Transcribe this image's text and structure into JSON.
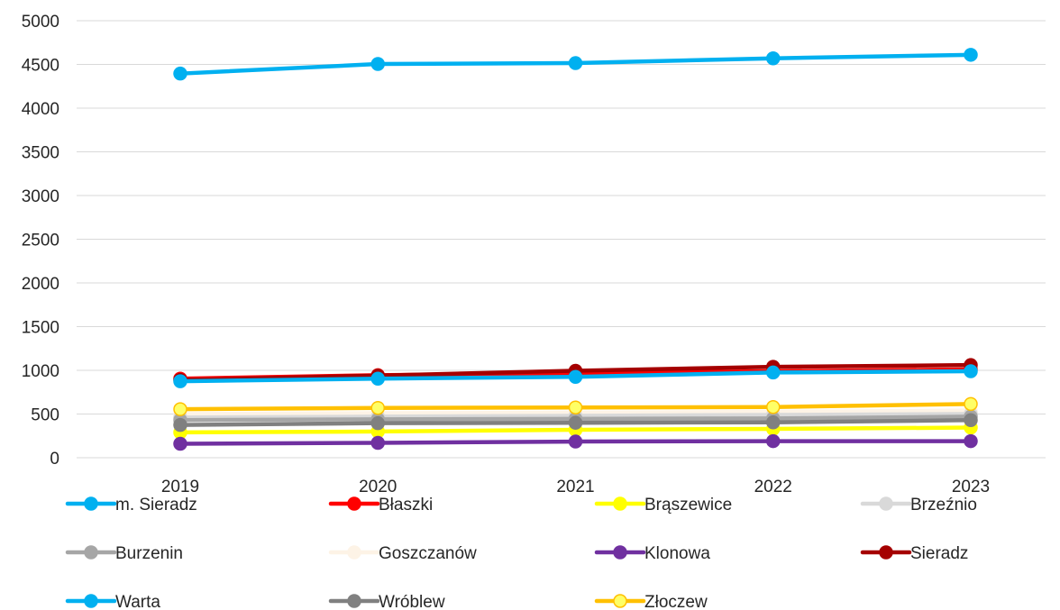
{
  "chart_data": {
    "type": "line",
    "title": "",
    "xlabel": "",
    "ylabel": "",
    "x": [
      "2019",
      "2020",
      "2021",
      "2022",
      "2023"
    ],
    "ylim": [
      0,
      5000
    ],
    "yticks": [
      0,
      500,
      1000,
      1500,
      2000,
      2500,
      3000,
      3500,
      4000,
      4500,
      5000
    ],
    "grid": "horizontal",
    "legend": "bottom",
    "series": [
      {
        "name": "m. Sieradz",
        "color": "#00b0f0",
        "fill": "#00b0f0",
        "values": [
          4395,
          4505,
          4515,
          4570,
          4610
        ]
      },
      {
        "name": "Błaszki",
        "color": "#ff0000",
        "fill": "#ff0000",
        "values": [
          905,
          945,
          965,
          990,
          1010
        ]
      },
      {
        "name": "Brąszewice",
        "color": "#ffff00",
        "fill": "#ffff00",
        "values": [
          290,
          300,
          320,
          330,
          345
        ]
      },
      {
        "name": "Brzeźnio",
        "color": "#d9d9d9",
        "fill": "#d9d9d9",
        "values": [
          460,
          470,
          480,
          490,
          500
        ]
      },
      {
        "name": "Burzenin",
        "color": "#a6a6a6",
        "fill": "#a6a6a6",
        "values": [
          430,
          440,
          445,
          450,
          470
        ]
      },
      {
        "name": "Goszczanów",
        "color": "#fdf3e6",
        "fill": "#fdf3e6",
        "values": [
          500,
          510,
          515,
          525,
          540
        ]
      },
      {
        "name": "Klonowa",
        "color": "#7030a0",
        "fill": "#7030a0",
        "values": [
          160,
          170,
          185,
          190,
          190
        ]
      },
      {
        "name": "Sieradz",
        "color": "#a50000",
        "fill": "#a50000",
        "values": [
          890,
          940,
          995,
          1040,
          1060
        ]
      },
      {
        "name": "Warta",
        "color": "#00b0f0",
        "fill": "#00b0f0",
        "values": [
          875,
          905,
          925,
          975,
          990
        ]
      },
      {
        "name": "Wróblew",
        "color": "#808080",
        "fill": "#808080",
        "values": [
          375,
          395,
          400,
          405,
          430
        ]
      },
      {
        "name": "Złoczew",
        "color": "#ffc000",
        "fill": "#ffff66",
        "values": [
          555,
          570,
          575,
          580,
          615
        ]
      }
    ]
  }
}
